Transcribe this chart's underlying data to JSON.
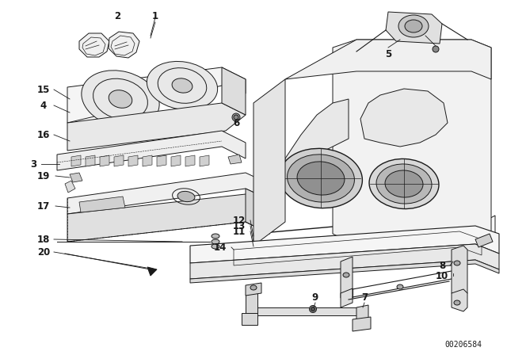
{
  "background_color": "#ffffff",
  "line_color": "#1a1a1a",
  "part_number_text": "00206584",
  "label_fontsize": 8.5,
  "pn_fontsize": 7
}
